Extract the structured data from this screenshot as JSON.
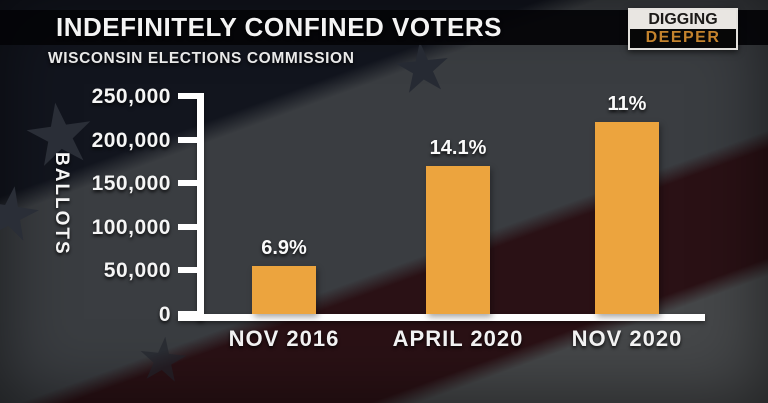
{
  "header": {
    "title": "INDEFINITELY CONFINED VOTERS",
    "subtitle": "WISCONSIN ELECTIONS COMMISSION",
    "logo": {
      "line1": "DIGGING",
      "line2": "DEEPER"
    }
  },
  "chart_data": {
    "type": "bar",
    "title": "INDEFINITELY CONFINED VOTERS",
    "subtitle": "WISCONSIN ELECTIONS COMMISSION",
    "categories": [
      "NOV 2016",
      "APRIL 2020",
      "NOV 2020"
    ],
    "values": [
      55000,
      170000,
      220000
    ],
    "bar_labels": [
      "6.9%",
      "14.1%",
      "11%"
    ],
    "ylabel": "BALLOTS",
    "xlabel": "",
    "ylim": [
      0,
      250000
    ],
    "yticks": [
      {
        "label": "250,000",
        "value": 250000
      },
      {
        "label": "200,000",
        "value": 200000
      },
      {
        "label": "150,000",
        "value": 150000
      },
      {
        "label": "100,000",
        "value": 100000
      },
      {
        "label": "50,000",
        "value": 50000
      },
      {
        "label": "0",
        "value": 0
      }
    ],
    "grid": false,
    "legend": null,
    "bar_color": "#eca43e",
    "axis_color": "#ffffff"
  },
  "colors": {
    "background_navy": "#12151e",
    "stripe_gray": "#3a3d41",
    "stripe_maroon": "#2a1115",
    "title_band": "#040407",
    "text": "#f4f4f4",
    "logo_orange": "#c4832d",
    "star_icon": "star"
  }
}
